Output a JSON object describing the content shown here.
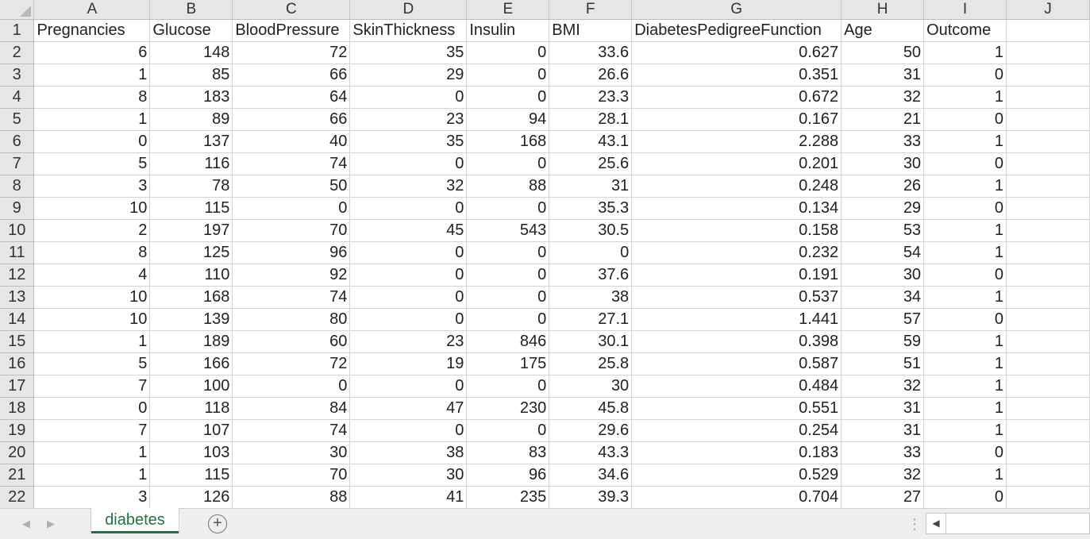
{
  "columns": [
    "A",
    "B",
    "C",
    "D",
    "E",
    "F",
    "G",
    "H",
    "I",
    "J"
  ],
  "rows": [
    {
      "n": "1",
      "cells": [
        "Pregnancies",
        "Glucose",
        "BloodPressure",
        "SkinThickness",
        "Insulin",
        "BMI",
        "DiabetesPedigreeFunction",
        "Age",
        "Outcome",
        ""
      ]
    },
    {
      "n": "2",
      "cells": [
        "6",
        "148",
        "72",
        "35",
        "0",
        "33.6",
        "0.627",
        "50",
        "1",
        ""
      ]
    },
    {
      "n": "3",
      "cells": [
        "1",
        "85",
        "66",
        "29",
        "0",
        "26.6",
        "0.351",
        "31",
        "0",
        ""
      ]
    },
    {
      "n": "4",
      "cells": [
        "8",
        "183",
        "64",
        "0",
        "0",
        "23.3",
        "0.672",
        "32",
        "1",
        ""
      ]
    },
    {
      "n": "5",
      "cells": [
        "1",
        "89",
        "66",
        "23",
        "94",
        "28.1",
        "0.167",
        "21",
        "0",
        ""
      ]
    },
    {
      "n": "6",
      "cells": [
        "0",
        "137",
        "40",
        "35",
        "168",
        "43.1",
        "2.288",
        "33",
        "1",
        ""
      ]
    },
    {
      "n": "7",
      "cells": [
        "5",
        "116",
        "74",
        "0",
        "0",
        "25.6",
        "0.201",
        "30",
        "0",
        ""
      ]
    },
    {
      "n": "8",
      "cells": [
        "3",
        "78",
        "50",
        "32",
        "88",
        "31",
        "0.248",
        "26",
        "1",
        ""
      ]
    },
    {
      "n": "9",
      "cells": [
        "10",
        "115",
        "0",
        "0",
        "0",
        "35.3",
        "0.134",
        "29",
        "0",
        ""
      ]
    },
    {
      "n": "10",
      "cells": [
        "2",
        "197",
        "70",
        "45",
        "543",
        "30.5",
        "0.158",
        "53",
        "1",
        ""
      ]
    },
    {
      "n": "11",
      "cells": [
        "8",
        "125",
        "96",
        "0",
        "0",
        "0",
        "0.232",
        "54",
        "1",
        ""
      ]
    },
    {
      "n": "12",
      "cells": [
        "4",
        "110",
        "92",
        "0",
        "0",
        "37.6",
        "0.191",
        "30",
        "0",
        ""
      ]
    },
    {
      "n": "13",
      "cells": [
        "10",
        "168",
        "74",
        "0",
        "0",
        "38",
        "0.537",
        "34",
        "1",
        ""
      ]
    },
    {
      "n": "14",
      "cells": [
        "10",
        "139",
        "80",
        "0",
        "0",
        "27.1",
        "1.441",
        "57",
        "0",
        ""
      ]
    },
    {
      "n": "15",
      "cells": [
        "1",
        "189",
        "60",
        "23",
        "846",
        "30.1",
        "0.398",
        "59",
        "1",
        ""
      ]
    },
    {
      "n": "16",
      "cells": [
        "5",
        "166",
        "72",
        "19",
        "175",
        "25.8",
        "0.587",
        "51",
        "1",
        ""
      ]
    },
    {
      "n": "17",
      "cells": [
        "7",
        "100",
        "0",
        "0",
        "0",
        "30",
        "0.484",
        "32",
        "1",
        ""
      ]
    },
    {
      "n": "18",
      "cells": [
        "0",
        "118",
        "84",
        "47",
        "230",
        "45.8",
        "0.551",
        "31",
        "1",
        ""
      ]
    },
    {
      "n": "19",
      "cells": [
        "7",
        "107",
        "74",
        "0",
        "0",
        "29.6",
        "0.254",
        "31",
        "1",
        ""
      ]
    },
    {
      "n": "20",
      "cells": [
        "1",
        "103",
        "30",
        "38",
        "83",
        "43.3",
        "0.183",
        "33",
        "0",
        ""
      ]
    },
    {
      "n": "21",
      "cells": [
        "1",
        "115",
        "70",
        "30",
        "96",
        "34.6",
        "0.529",
        "32",
        "1",
        ""
      ]
    },
    {
      "n": "22",
      "cells": [
        "3",
        "126",
        "88",
        "41",
        "235",
        "39.3",
        "0.704",
        "27",
        "0",
        ""
      ]
    }
  ],
  "tabs": {
    "active_sheet": "diabetes",
    "prev_icon": "chevron-left-icon",
    "next_icon": "chevron-right-icon",
    "add_icon": "plus-circle-icon",
    "scroll_left_icon": "caret-left-icon"
  },
  "colors": {
    "accent": "#217346",
    "header_bg": "#e6e6e6",
    "gridline": "#d4d4d4"
  }
}
